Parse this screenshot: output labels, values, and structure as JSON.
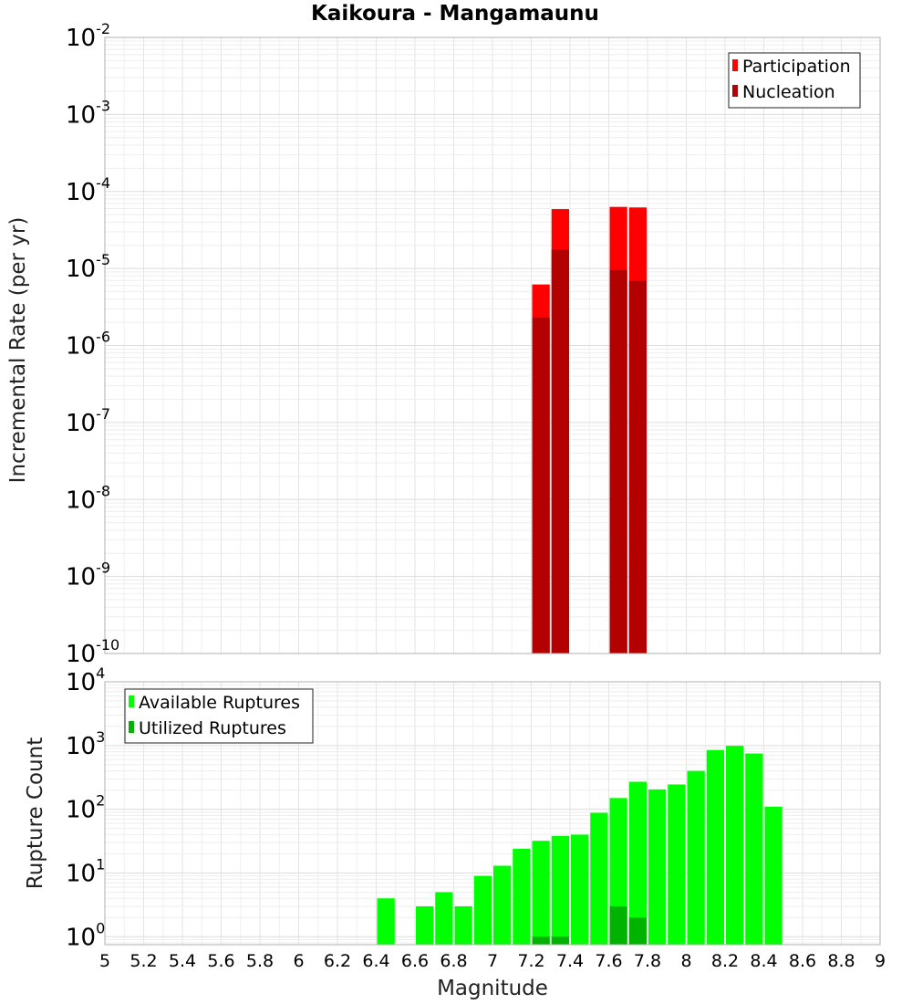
{
  "chart_data": [
    {
      "type": "bar",
      "title": "Kaikoura - Mangamaunu",
      "xlabel": "Magnitude",
      "ylabel": "Incremental Rate (per yr)",
      "yscale": "log",
      "xlim": [
        5,
        9
      ],
      "ylim": [
        1e-10,
        0.01
      ],
      "y_tick_exponents": [
        -10,
        -9,
        -8,
        -7,
        -6,
        -5,
        -4,
        -3,
        -2
      ],
      "legend": {
        "position": "top-right",
        "entries": [
          "Participation",
          "Nucleation"
        ]
      },
      "colors": {
        "Participation": "#ff0000",
        "Nucleation": "#b30000"
      },
      "bin_width": 0.1,
      "series": [
        {
          "name": "Participation",
          "x": [
            7.25,
            7.35,
            7.65,
            7.75
          ],
          "values": [
            6.2e-06,
            5.9e-05,
            6.3e-05,
            6.2e-05
          ]
        },
        {
          "name": "Nucleation",
          "x": [
            7.25,
            7.35,
            7.65,
            7.75
          ],
          "values": [
            2.3e-06,
            1.75e-05,
            9.5e-06,
            6.9e-06
          ]
        }
      ]
    },
    {
      "type": "bar",
      "title": "",
      "xlabel": "Magnitude",
      "ylabel": "Rupture Count",
      "yscale": "log",
      "xlim": [
        5,
        9
      ],
      "ylim": [
        0.75,
        10000
      ],
      "y_tick_exponents": [
        0,
        1,
        2,
        3,
        4
      ],
      "x_ticks": [
        "5",
        "5.2",
        "5.4",
        "5.6",
        "5.8",
        "6",
        "6.2",
        "6.4",
        "6.6",
        "6.8",
        "7",
        "7.2",
        "7.4",
        "7.6",
        "7.8",
        "8",
        "8.2",
        "8.4",
        "8.6",
        "8.8",
        "9"
      ],
      "legend": {
        "position": "top-left",
        "entries": [
          "Available Ruptures",
          "Utilized Ruptures"
        ]
      },
      "colors": {
        "Available Ruptures": "#00ff00",
        "Utilized Ruptures": "#00b300"
      },
      "bin_width": 0.1,
      "series": [
        {
          "name": "Available Ruptures",
          "x": [
            6.45,
            6.65,
            6.75,
            6.85,
            6.95,
            7.05,
            7.15,
            7.25,
            7.35,
            7.45,
            7.55,
            7.65,
            7.75,
            7.85,
            7.95,
            8.05,
            8.15,
            8.25,
            8.35,
            8.45
          ],
          "values": [
            4,
            3,
            5,
            3,
            9,
            13,
            24,
            32,
            38,
            40,
            88,
            150,
            270,
            205,
            245,
            400,
            850,
            990,
            750,
            110
          ]
        },
        {
          "name": "Utilized Ruptures",
          "x": [
            7.25,
            7.35,
            7.65,
            7.75
          ],
          "values": [
            1,
            1,
            3,
            2
          ]
        }
      ]
    }
  ]
}
